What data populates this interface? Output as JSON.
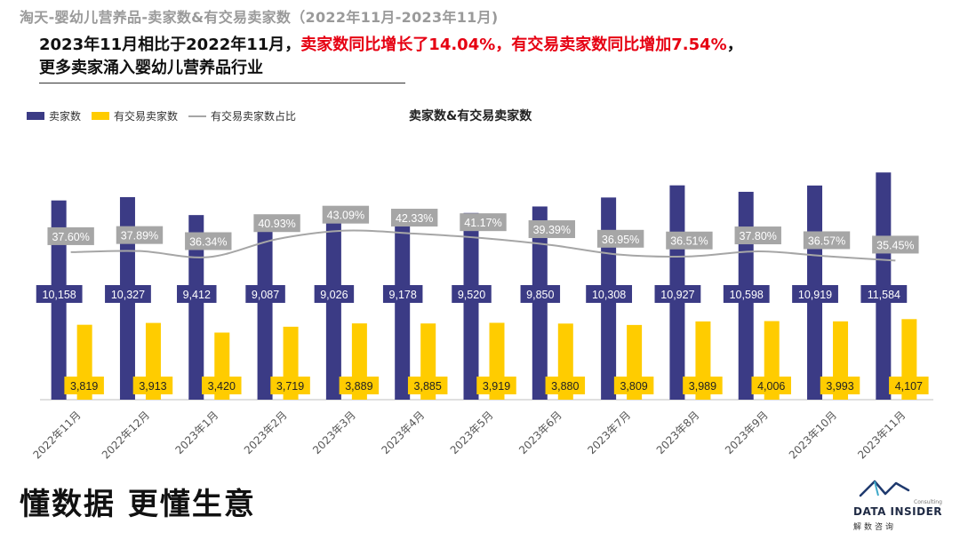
{
  "header": {
    "title": "淘天-婴幼儿营养品-卖家数&有交易卖家数（2022年11月-2023年11月)"
  },
  "headline": {
    "part1": "2023年11月相比于2022年11月，",
    "part2_red": "卖家数同比增长了14.04%，有交易卖家数同比增加7.54%",
    "part3": "，更多卖家涌入婴幼儿营养品行业"
  },
  "legend": {
    "bar1": "卖家数",
    "bar2": "有交易卖家数",
    "line": "有交易卖家数占比"
  },
  "chart_data": {
    "type": "bar",
    "title": "卖家数&有交易卖家数",
    "categories": [
      "2022年11月",
      "2022年12月",
      "2023年1月",
      "2023年2月",
      "2023年3月",
      "2023年4月",
      "2023年5月",
      "2023年6月",
      "2023年7月",
      "2023年8月",
      "2023年9月",
      "2023年10月",
      "2023年11月"
    ],
    "series": [
      {
        "name": "卖家数",
        "color": "#3b3b85",
        "values": [
          10158,
          10327,
          9412,
          9087,
          9026,
          9178,
          9520,
          9850,
          10308,
          10927,
          10598,
          10919,
          11584
        ],
        "labels": [
          "10,158",
          "10,327",
          "9,412",
          "9,087",
          "9,026",
          "9,178",
          "9,520",
          "9,850",
          "10,308",
          "10,927",
          "10,598",
          "10,919",
          "11,584"
        ]
      },
      {
        "name": "有交易卖家数",
        "color": "#ffcc00",
        "values": [
          3819,
          3913,
          3420,
          3719,
          3889,
          3885,
          3919,
          3880,
          3809,
          3989,
          4006,
          3993,
          4107
        ],
        "labels": [
          "3,819",
          "3,913",
          "3,420",
          "3,719",
          "3,889",
          "3,885",
          "3,919",
          "3,880",
          "3,809",
          "3,989",
          "4,006",
          "3,993",
          "4,107"
        ]
      },
      {
        "name": "有交易卖家数占比",
        "type": "line",
        "color": "#a6a6a6",
        "values": [
          37.6,
          37.89,
          36.34,
          40.93,
          43.09,
          42.33,
          41.17,
          39.39,
          36.95,
          36.51,
          37.8,
          36.57,
          35.45
        ],
        "labels": [
          "37.60%",
          "37.89%",
          "36.34%",
          "40.93%",
          "43.09%",
          "42.33%",
          "41.17%",
          "39.39%",
          "36.95%",
          "36.51%",
          "37.80%",
          "36.57%",
          "35.45%"
        ]
      }
    ],
    "ylim": [
      0,
      12000
    ],
    "line_ylim": [
      0,
      60
    ],
    "grid": false,
    "legend_position": "top-left"
  },
  "footer": {
    "slogan": "懂数据 更懂生意",
    "logo_small": "Consulting",
    "logo_name": "DATA INSIDER",
    "logo_cn": "解数咨询"
  }
}
